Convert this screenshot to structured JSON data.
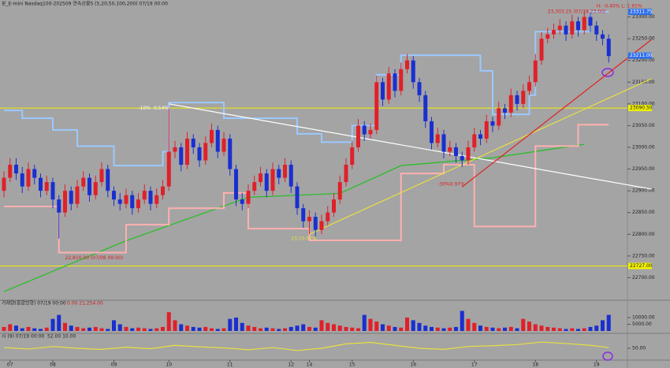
{
  "header": {
    "title": "분_E-mini Nasdaq100-202509 연속선물5 (5,20,50,100,200) 07/19 00:00"
  },
  "chart_data": [
    {
      "type": "candlestick",
      "categories": [
        null,
        "07",
        null,
        null,
        null,
        null,
        null,
        null,
        "08",
        null,
        null,
        null,
        null,
        null,
        null,
        null,
        null,
        null,
        "09",
        null,
        null,
        null,
        null,
        null,
        null,
        null,
        null,
        "10",
        null,
        null,
        null,
        null,
        null,
        null,
        null,
        null,
        null,
        "11",
        null,
        null,
        null,
        null,
        null,
        null,
        null,
        null,
        null,
        "12",
        null,
        null,
        "14",
        null,
        null,
        null,
        null,
        null,
        null,
        "15",
        null,
        null,
        null,
        null,
        null,
        null,
        null,
        null,
        null,
        "16",
        null,
        null,
        null,
        null,
        null,
        null,
        null,
        null,
        null,
        "17",
        null,
        null,
        null,
        null,
        null,
        null,
        null,
        null,
        null,
        "18",
        null,
        null,
        null,
        null,
        null,
        null,
        null,
        null,
        null,
        "19",
        null,
        null
      ],
      "open": [
        22900,
        22930,
        22960,
        22940,
        22910,
        22950,
        22930,
        22900,
        22920,
        22880,
        22850,
        22900,
        22870,
        22910,
        22930,
        22890,
        22920,
        22950,
        22900,
        22880,
        22870,
        22890,
        22860,
        22880,
        22900,
        22870,
        22890,
        22910,
        22990,
        23000,
        22960,
        23020,
        23000,
        22970,
        23010,
        23040,
        22990,
        23020,
        22950,
        22880,
        22870,
        22900,
        22920,
        22940,
        22900,
        22950,
        22930,
        22960,
        22910,
        22860,
        22830,
        22840,
        22810,
        22830,
        22850,
        22880,
        22920,
        22960,
        23000,
        23050,
        23030,
        23040,
        23150,
        23110,
        23170,
        23130,
        23180,
        23200,
        23150,
        23120,
        23060,
        23010,
        23030,
        22990,
        23000,
        22980,
        22970,
        23000,
        23030,
        23020,
        23060,
        23050,
        23090,
        23080,
        23120,
        23100,
        23130,
        23150,
        23200,
        23250,
        23260,
        23270,
        23280,
        23260,
        23290,
        23270,
        23300,
        23280,
        23260,
        23250
      ],
      "high": [
        22945,
        22975,
        22975,
        22955,
        22965,
        22960,
        22940,
        22935,
        22930,
        22890,
        22915,
        22910,
        22925,
        22945,
        22940,
        22935,
        22965,
        22960,
        22910,
        22895,
        22905,
        22900,
        22895,
        22915,
        22910,
        22905,
        22925,
        23090,
        23015,
        23010,
        23035,
        23030,
        23010,
        23025,
        23055,
        23050,
        23035,
        23030,
        22960,
        22895,
        22915,
        22935,
        22955,
        22950,
        22965,
        22960,
        22975,
        22970,
        22920,
        22870,
        22855,
        22850,
        22845,
        22865,
        22895,
        22935,
        22975,
        23015,
        23065,
        23060,
        23055,
        23165,
        23160,
        23185,
        23180,
        23195,
        23215,
        23210,
        23160,
        23130,
        23070,
        23045,
        23040,
        23015,
        23010,
        22990,
        23015,
        23045,
        23040,
        23075,
        23070,
        23105,
        23100,
        23135,
        23130,
        23145,
        23165,
        23215,
        23265,
        23275,
        23285,
        23295,
        23290,
        23305,
        23300,
        23315,
        23310,
        23290,
        23270,
        23260
      ],
      "low": [
        22885,
        22920,
        22925,
        22895,
        22900,
        22915,
        22885,
        22890,
        22860,
        22790,
        22840,
        22855,
        22860,
        22900,
        22875,
        22880,
        22910,
        22885,
        22865,
        22855,
        22860,
        22845,
        22850,
        22870,
        22855,
        22860,
        22880,
        22900,
        22975,
        22945,
        22950,
        22985,
        22955,
        22960,
        23000,
        22975,
        22980,
        22935,
        22865,
        22855,
        22860,
        22890,
        22910,
        22885,
        22890,
        22915,
        22920,
        22895,
        22845,
        22815,
        22800,
        22795,
        22800,
        22820,
        22840,
        22870,
        22910,
        22950,
        22990,
        23015,
        23020,
        23030,
        23095,
        23100,
        23115,
        23120,
        23170,
        23135,
        23105,
        23045,
        22995,
        23000,
        22975,
        22980,
        22965,
        22955,
        22960,
        22990,
        23005,
        23010,
        23035,
        23040,
        23065,
        23070,
        23085,
        23090,
        23120,
        23140,
        23190,
        23240,
        23250,
        23260,
        23245,
        23250,
        23255,
        23260,
        23265,
        23245,
        23235,
        23195
      ],
      "close": [
        22930,
        22960,
        22940,
        22910,
        22950,
        22930,
        22900,
        22920,
        22880,
        22850,
        22900,
        22870,
        22910,
        22930,
        22890,
        22920,
        22950,
        22900,
        22880,
        22870,
        22890,
        22860,
        22880,
        22900,
        22870,
        22890,
        22910,
        22990,
        23000,
        22960,
        23020,
        23000,
        22970,
        23010,
        23040,
        22990,
        23020,
        22950,
        22880,
        22870,
        22900,
        22920,
        22940,
        22900,
        22950,
        22930,
        22960,
        22910,
        22860,
        22830,
        22840,
        22810,
        22830,
        22850,
        22880,
        22920,
        22960,
        23000,
        23050,
        23030,
        23040,
        23150,
        23110,
        23170,
        23130,
        23180,
        23200,
        23150,
        23120,
        23060,
        23010,
        23030,
        22990,
        23000,
        22980,
        22970,
        23000,
        23030,
        23020,
        23060,
        23050,
        23090,
        23080,
        23120,
        23100,
        23130,
        23150,
        23200,
        23250,
        23260,
        23270,
        23280,
        23260,
        23290,
        23270,
        23300,
        23280,
        23260,
        23250,
        23210
      ],
      "up_color": "#e0202a",
      "down_color": "#1a2fd0",
      "ylim": [
        22650,
        23330
      ],
      "yticks": [
        {
          "value": 23300,
          "label": "23300.00"
        },
        {
          "value": 23250,
          "label": "23250.00"
        },
        {
          "value": 23200,
          "label": "23200.00"
        },
        {
          "value": 23150,
          "label": "23150.00"
        },
        {
          "value": 23100,
          "label": "23100.00"
        },
        {
          "value": 23050,
          "label": "23050.00"
        },
        {
          "value": 23000,
          "label": "23000.00"
        },
        {
          "value": 22950,
          "label": "22950.00"
        },
        {
          "value": 22900,
          "label": "22900.00"
        },
        {
          "value": 22850,
          "label": "22850.00"
        },
        {
          "value": 22800,
          "label": "22800.00"
        },
        {
          "value": 22750,
          "label": "22750.00"
        },
        {
          "value": 22700,
          "label": "22700.00"
        }
      ],
      "lines": [
        {
          "color": "#22c020",
          "step": false,
          "x": [
            0,
            20,
            40,
            55,
            65,
            80,
            95
          ],
          "values": [
            22668,
            22785,
            22885,
            22894,
            22958,
            22976,
            23007
          ]
        },
        {
          "color": "#9cc8ff",
          "step": true,
          "x": [
            0,
            3,
            8,
            12,
            18,
            26,
            27,
            36,
            48,
            52,
            57,
            61,
            65,
            78,
            80,
            86,
            87,
            96,
            99
          ],
          "values": [
            23085,
            23067,
            23040,
            23003,
            22958,
            22990,
            23103,
            23067,
            23031,
            23012,
            23050,
            23167,
            23212,
            23176,
            23076,
            23120,
            23266,
            23312,
            23312
          ]
        },
        {
          "color": "#ffb0b0",
          "step": true,
          "x": [
            0,
            9,
            20,
            27,
            36,
            40,
            50,
            65,
            72,
            77,
            87,
            94,
            99
          ],
          "values": [
            22864,
            22758,
            22822,
            22860,
            22895,
            22813,
            22786,
            22940,
            22960,
            22818,
            23003,
            23052,
            23052
          ]
        }
      ],
      "trendlines": [
        {
          "color": "#ffffff",
          "x": [
            27,
            106
          ],
          "values": [
            23100,
            22904
          ]
        },
        {
          "color": "#e8e040",
          "x": [
            50,
            106
          ],
          "values": [
            22800,
            23158
          ]
        },
        {
          "color": "#e02020",
          "x": [
            75,
            106
          ],
          "values": [
            22909,
            23248
          ]
        }
      ],
      "hlines": [
        {
          "value": 23090.5,
          "label": "23090.50",
          "color": "#f0f000"
        },
        {
          "value": 22727,
          "label": "22727.00",
          "color": "#f0f000"
        }
      ],
      "tags": [
        {
          "value": 23311.75,
          "label": "23311.75",
          "color": "#2f6ee8"
        },
        {
          "value": 23211,
          "label": "23211.00",
          "color": "#2f6ee8"
        }
      ],
      "annotations": [
        {
          "text": "-10% -0.54%",
          "color": "#ffffff",
          "x": 22,
          "y": 23090
        },
        {
          "text": "23,303.25 (07/18 23:00)",
          "color": "#e02020",
          "x": 89,
          "y": 23312
        },
        {
          "text": "H: -0.40%  L: 1.91%",
          "color": "#e02020",
          "x": 97,
          "y": 23325
        },
        {
          "text": "22,810.00 (07/08 09:00)",
          "color": "#e02020",
          "x": 10,
          "y": 22745
        },
        {
          "text": "23,10.07%",
          "color": "#e8e040",
          "x": 47,
          "y": 22790
        },
        {
          "text": "-30%0.97%",
          "color": "#e02020",
          "x": 71,
          "y": 22915
        }
      ]
    },
    {
      "type": "bar",
      "title": "거래량(종합방향) 07/19 00:00",
      "subtitle": "0.00  21,254.00",
      "values": [
        3000,
        5000,
        4000,
        2000,
        3000,
        2000,
        1500,
        2500,
        9000,
        12000,
        6000,
        4000,
        3000,
        2000,
        2500,
        3000,
        2000,
        1500,
        8000,
        5000,
        3000,
        2000,
        2500,
        2000,
        1500,
        2000,
        3000,
        14000,
        8000,
        5000,
        4000,
        3000,
        2500,
        3000,
        2000,
        1500,
        2000,
        9000,
        10000,
        6000,
        4000,
        3000,
        2000,
        2500,
        2000,
        1500,
        2000,
        3000,
        4000,
        5000,
        3000,
        2500,
        8000,
        6000,
        5000,
        4000,
        3000,
        2500,
        2000,
        12000,
        9000,
        7000,
        5000,
        4000,
        3000,
        2500,
        10000,
        8000,
        6000,
        4000,
        3000,
        2500,
        2000,
        2500,
        3000,
        15000,
        9000,
        6000,
        4000,
        3000,
        2500,
        2000,
        2500,
        3000,
        2000,
        9000,
        7000,
        5000,
        4000,
        3000,
        2500,
        2000,
        1500,
        2000,
        1500,
        2000,
        3000,
        4000,
        8000,
        12000
      ],
      "ylim": [
        0,
        20000
      ],
      "yticks": [
        {
          "value": 10000,
          "label": "10000.00"
        },
        {
          "value": 5000,
          "label": "5000.00"
        }
      ]
    },
    {
      "type": "line",
      "title": "시 (9) 07/19 00:00",
      "subtitle": "52.00  10.00",
      "color": "#e8e040",
      "x": [
        0,
        4,
        8,
        12,
        16,
        20,
        24,
        28,
        32,
        36,
        40,
        44,
        48,
        52,
        56,
        60,
        64,
        68,
        72,
        76,
        80,
        84,
        88,
        92,
        96,
        99
      ],
      "values": [
        52,
        48,
        55,
        50,
        47,
        53,
        49,
        58,
        54,
        51,
        46,
        52,
        44,
        50,
        62,
        66,
        58,
        50,
        47,
        55,
        57,
        60,
        67,
        63,
        58,
        52
      ],
      "ylim": [
        20,
        80
      ],
      "yticks": [
        {
          "value": 50,
          "label": "50.00"
        }
      ]
    }
  ]
}
